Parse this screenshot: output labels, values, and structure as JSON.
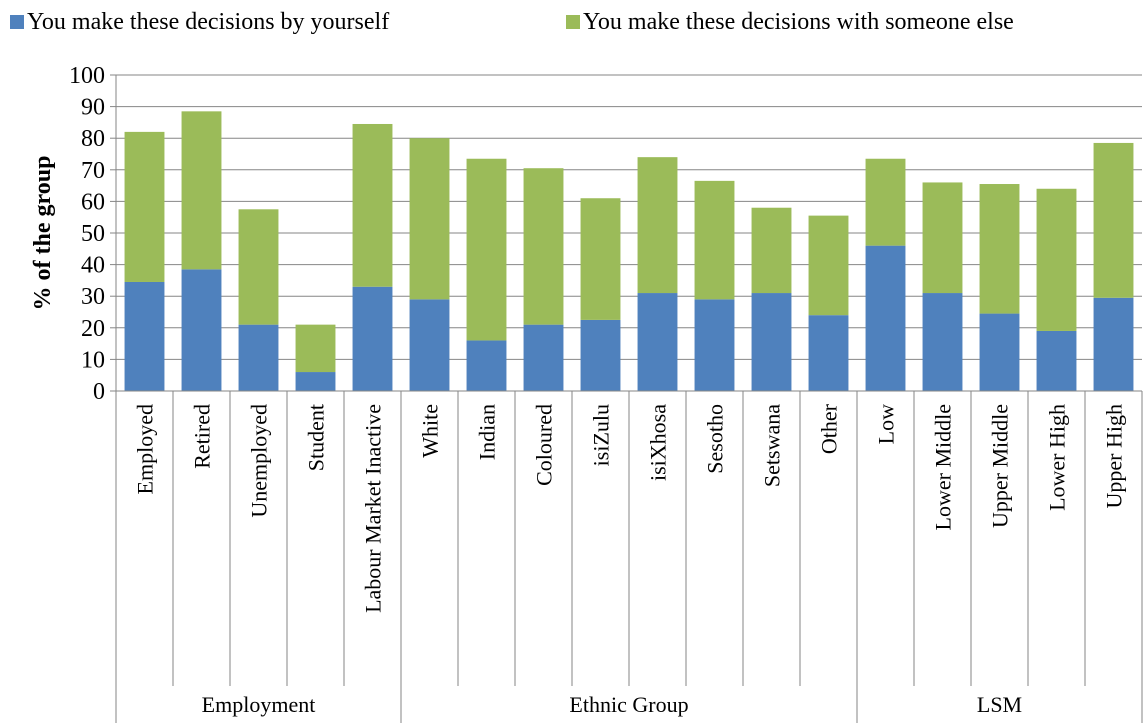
{
  "chart_data": {
    "type": "bar",
    "stacked": true,
    "title": "",
    "ylabel": "% of the group",
    "ylim": [
      0,
      100
    ],
    "yticks": [
      0,
      10,
      20,
      30,
      40,
      50,
      60,
      70,
      80,
      90,
      100
    ],
    "grid": true,
    "legend_position": "top",
    "categories": [
      "Employed",
      "Retired",
      "Unemployed",
      "Student",
      "Labour Market Inactive",
      "White",
      "Indian",
      "Coloured",
      "isiZulu",
      "isiXhosa",
      "Sesotho",
      "Setswana",
      "Other",
      "Low",
      "Lower Middle",
      "Upper Middle",
      "Lower High",
      "Upper High"
    ],
    "groups": [
      {
        "label": "Employment",
        "count": 5
      },
      {
        "label": "Ethnic Group",
        "count": 8
      },
      {
        "label": "LSM",
        "count": 5
      }
    ],
    "series": [
      {
        "name": "You make these decisions by yourself",
        "color": "#4F81BD",
        "values": [
          34.5,
          38.5,
          21,
          6,
          33,
          29,
          16,
          21,
          22.5,
          31,
          29,
          31,
          24,
          46,
          31,
          24.5,
          19,
          29.5
        ]
      },
      {
        "name": "You make these decisions with someone else",
        "color": "#9BBB59",
        "values": [
          47.5,
          50,
          36.5,
          15,
          51.5,
          51,
          57.5,
          49.5,
          38.5,
          43,
          37.5,
          27,
          31.5,
          27.5,
          35,
          41,
          45,
          49
        ]
      }
    ]
  }
}
